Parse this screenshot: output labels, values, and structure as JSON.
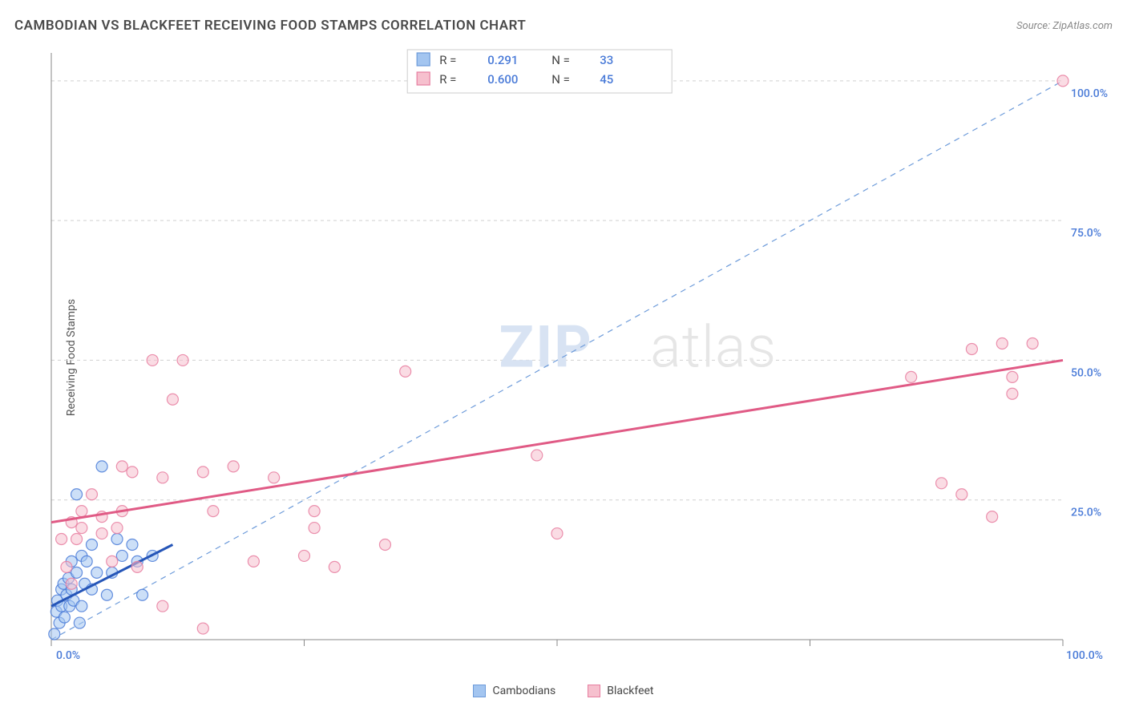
{
  "header": {
    "title": "CAMBODIAN VS BLACKFEET RECEIVING FOOD STAMPS CORRELATION CHART",
    "source": "Source: ZipAtlas.com"
  },
  "ylabel": "Receiving Food Stamps",
  "watermark": {
    "part1": "ZIP",
    "part2": "atlas"
  },
  "chart": {
    "type": "scatter",
    "xlim": [
      0,
      100
    ],
    "ylim": [
      0,
      105
    ],
    "xtick_pos": [
      0,
      25,
      50,
      75,
      100
    ],
    "xtick_labels": [
      "0.0%",
      "",
      "",
      "",
      "100.0%"
    ],
    "ytick_pos": [
      25,
      50,
      75,
      100
    ],
    "ytick_labels": [
      "25.0%",
      "50.0%",
      "75.0%",
      "100.0%"
    ],
    "grid_color": "#d0d0d0",
    "background_color": "#ffffff",
    "point_radius": 7,
    "series": [
      {
        "name": "Cambodians",
        "color_fill": "#a3c5f0",
        "color_stroke": "#4a7bd8",
        "R": "0.291",
        "N": "33",
        "trend": {
          "x1": 0,
          "y1": 6,
          "x2": 12,
          "y2": 17
        },
        "points": [
          [
            0.3,
            1
          ],
          [
            0.5,
            5
          ],
          [
            0.6,
            7
          ],
          [
            0.8,
            3
          ],
          [
            1,
            9
          ],
          [
            1,
            6
          ],
          [
            1.2,
            10
          ],
          [
            1.3,
            4
          ],
          [
            1.5,
            8
          ],
          [
            1.7,
            11
          ],
          [
            1.8,
            6
          ],
          [
            2,
            9
          ],
          [
            2,
            14
          ],
          [
            2.2,
            7
          ],
          [
            2.5,
            12
          ],
          [
            3,
            15
          ],
          [
            3,
            6
          ],
          [
            3.3,
            10
          ],
          [
            3.5,
            14
          ],
          [
            4,
            9
          ],
          [
            4,
            17
          ],
          [
            4.5,
            12
          ],
          [
            2.5,
            26
          ],
          [
            5,
            31
          ],
          [
            5.5,
            8
          ],
          [
            6,
            12
          ],
          [
            7,
            15
          ],
          [
            8,
            17
          ],
          [
            8.5,
            14
          ],
          [
            10,
            15
          ],
          [
            9,
            8
          ],
          [
            6.5,
            18
          ],
          [
            2.8,
            3
          ]
        ]
      },
      {
        "name": "Blackfeet",
        "color_fill": "#f6c0ce",
        "color_stroke": "#e77ea0",
        "R": "0.600",
        "N": "45",
        "trend": {
          "x1": 0,
          "y1": 21,
          "x2": 100,
          "y2": 50
        },
        "points": [
          [
            1,
            18
          ],
          [
            1.5,
            13
          ],
          [
            2,
            21
          ],
          [
            2.5,
            18
          ],
          [
            3,
            20
          ],
          [
            3,
            23
          ],
          [
            2,
            10
          ],
          [
            4,
            26
          ],
          [
            5,
            22
          ],
          [
            5,
            19
          ],
          [
            6,
            14
          ],
          [
            6.5,
            20
          ],
          [
            7,
            23
          ],
          [
            8,
            30
          ],
          [
            8.5,
            13
          ],
          [
            10,
            50
          ],
          [
            11,
            29
          ],
          [
            13,
            50
          ],
          [
            12,
            43
          ],
          [
            15,
            30
          ],
          [
            16,
            23
          ],
          [
            15,
            2
          ],
          [
            11,
            6
          ],
          [
            18,
            31
          ],
          [
            20,
            14
          ],
          [
            7,
            31
          ],
          [
            22,
            29
          ],
          [
            25,
            15
          ],
          [
            26,
            23
          ],
          [
            26,
            20
          ],
          [
            28,
            13
          ],
          [
            33,
            17
          ],
          [
            35,
            48
          ],
          [
            48,
            33
          ],
          [
            50,
            19
          ],
          [
            85,
            47
          ],
          [
            88,
            28
          ],
          [
            90,
            26
          ],
          [
            91,
            52
          ],
          [
            94,
            53
          ],
          [
            93,
            22
          ],
          [
            95,
            44
          ],
          [
            95,
            47
          ],
          [
            97,
            53
          ],
          [
            100,
            100
          ]
        ]
      }
    ],
    "ref_line": {
      "x1": 0,
      "y1": 0,
      "x2": 100,
      "y2": 100
    },
    "stats_box": {
      "rows": [
        {
          "swatch": "blue",
          "r": "0.291",
          "n": "33"
        },
        {
          "swatch": "pink",
          "r": "0.600",
          "n": "45"
        }
      ]
    }
  },
  "bottom_legend": {
    "items": [
      {
        "swatch": "blue",
        "label": "Cambodians"
      },
      {
        "swatch": "pink",
        "label": "Blackfeet"
      }
    ]
  }
}
